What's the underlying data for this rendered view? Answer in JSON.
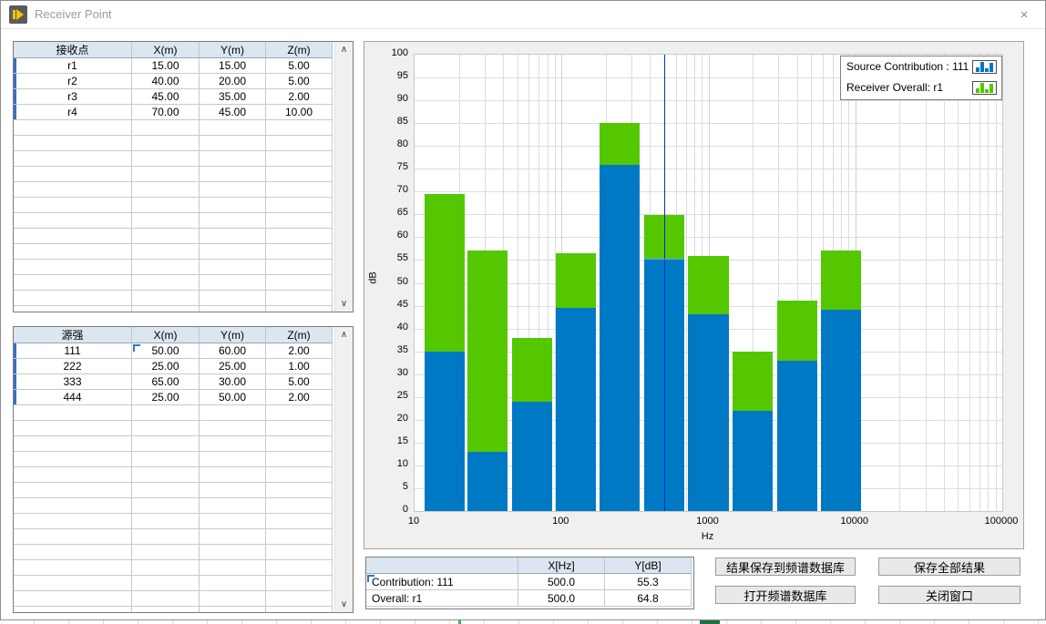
{
  "window": {
    "title": "Receiver Point",
    "close_glyph": "×"
  },
  "receiver_table": {
    "headers": [
      "接收点",
      "X(m)",
      "Y(m)",
      "Z(m)"
    ],
    "rows": [
      [
        "r1",
        "15.00",
        "15.00",
        "5.00"
      ],
      [
        "r2",
        "40.00",
        "20.00",
        "5.00"
      ],
      [
        "r3",
        "45.00",
        "35.00",
        "2.00"
      ],
      [
        "r4",
        "70.00",
        "45.00",
        "10.00"
      ]
    ]
  },
  "source_table": {
    "headers": [
      "源强",
      "X(m)",
      "Y(m)",
      "Z(m)"
    ],
    "rows": [
      [
        "111",
        "50.00",
        "60.00",
        "2.00"
      ],
      [
        "222",
        "25.00",
        "25.00",
        "1.00"
      ],
      [
        "333",
        "65.00",
        "30.00",
        "5.00"
      ],
      [
        "444",
        "25.00",
        "50.00",
        "2.00"
      ]
    ]
  },
  "chart_data": {
    "type": "bar",
    "stacked": true,
    "x_scale": "log",
    "xlabel": "Hz",
    "ylabel": "dB",
    "xlim": [
      10,
      100000
    ],
    "ylim": [
      0,
      100
    ],
    "ytick_step": 5,
    "xticks": [
      "10",
      "100",
      "1000",
      "10000",
      "100000"
    ],
    "grid": true,
    "legend_position": "top-right",
    "frequencies_hz": [
      16,
      31.5,
      63,
      125,
      250,
      500,
      1000,
      2000,
      4000,
      8000
    ],
    "series": [
      {
        "name": "Source Contribution : 111",
        "color": "#0079C5",
        "values": [
          35,
          13,
          24,
          44.5,
          75.8,
          55.3,
          43.2,
          22,
          33,
          44.1
        ]
      },
      {
        "name": "Receiver Overall: r1",
        "color": "#54C700",
        "values": [
          69.5,
          57,
          38,
          56.4,
          85,
          64.8,
          55.8,
          35,
          46.1,
          57.1
        ]
      }
    ],
    "cursor": {
      "x_hz": 500,
      "y_db": 55.3,
      "color": "#0033CC",
      "crosshair_color": "#5E9EFF"
    }
  },
  "cursor_table": {
    "headers": [
      "",
      "X[Hz]",
      "Y[dB]"
    ],
    "rows": [
      [
        "Contribution: 111",
        "500.0",
        "55.3"
      ],
      [
        "Overall: r1",
        "500.0",
        "64.8"
      ]
    ]
  },
  "buttons": [
    {
      "label": "结果保存到频谱数据库"
    },
    {
      "label": "保存全部结果"
    },
    {
      "label": "打开频谱数据库"
    },
    {
      "label": "关闭窗口"
    }
  ],
  "colors": {
    "bar_blue": "#0079C5",
    "bar_green": "#54C700",
    "table_header_bg": "#DCE6F1",
    "cursor_blue": "#0033CC"
  }
}
